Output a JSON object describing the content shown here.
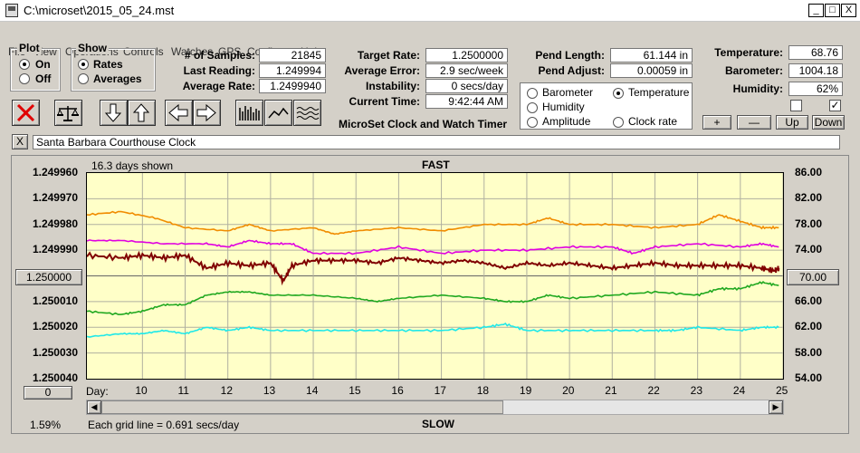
{
  "window": {
    "title": "C:\\microset\\2015_05_24.mst",
    "min": "_",
    "max": "□",
    "close": "X"
  },
  "menu": [
    "File",
    "View",
    "Operations",
    "Controls",
    "Watches",
    "GPS",
    "Configure",
    "Help"
  ],
  "plot_group": {
    "title": "Plot",
    "on": "On",
    "off": "Off",
    "selected": "On"
  },
  "show_group": {
    "title": "Show",
    "rates": "Rates",
    "averages": "Averages",
    "selected": "Rates"
  },
  "stats": {
    "samples_label": "# of Samples:",
    "samples": "21845",
    "last_label": "Last Reading:",
    "last": "1.249994",
    "avg_label": "Average Rate:",
    "avg": "1.2499940",
    "target_label": "Target Rate:",
    "target": "1.2500000",
    "avgerr_label": "Average Error:",
    "avgerr": "2.9 sec/week",
    "instab_label": "Instability:",
    "instab": "0 secs/day",
    "time_label": "Current Time:",
    "time": "9:42:44 AM",
    "app_name": "MicroSet Clock and Watch Timer",
    "pendlen_label": "Pend Length:",
    "pendlen": "61.144 in",
    "pendadj_label": "Pend Adjust:",
    "pendadj": "0.00059 in",
    "temp_label": "Temperature:",
    "temp": "68.76",
    "baro_label": "Barometer:",
    "baro": "1004.18",
    "hum_label": "Humidity:",
    "hum": "62%"
  },
  "sensor_group": {
    "barometer": "Barometer",
    "temperature": "Temperature",
    "humidity": "Humidity",
    "amplitude": "Amplitude",
    "clock_rate": "Clock rate",
    "selected": "Temperature"
  },
  "adj_buttons": {
    "plus": "+",
    "minus": "—",
    "up": "Up",
    "down": "Down"
  },
  "clock_name": {
    "close": "X",
    "value": "Santa Barbara Courthouse Clock"
  },
  "chart": {
    "days_shown": "16.3 days shown",
    "fast": "FAST",
    "slow": "SLOW",
    "center_left": "1.250000",
    "center_right": "70.00",
    "zero_button": "0",
    "day_label": "Day:",
    "percent": "1.59%",
    "grid_note": "Each grid line = 0.691 secs/day"
  },
  "colors": {
    "barometer": "#f08c00",
    "temperature": "#20a820",
    "humidity": "#e000e0",
    "amplitude": "#20e8e8",
    "rate": "#800000",
    "plot_bg": "#ffffc8"
  },
  "chart_data": {
    "type": "line",
    "title": "",
    "xlabel": "Day:",
    "x_ticks": [
      10,
      11,
      12,
      13,
      14,
      15,
      16,
      17,
      18,
      19,
      20,
      21,
      22,
      23,
      24,
      25
    ],
    "left_axis_ticks": [
      "1.249960",
      "1.249970",
      "1.249980",
      "1.249990",
      "1.250000",
      "1.250010",
      "1.250020",
      "1.250030",
      "1.250040"
    ],
    "right_axis_ticks": [
      "86.00",
      "82.00",
      "78.00",
      "74.00",
      "70.00",
      "66.00",
      "62.00",
      "58.00",
      "54.00"
    ],
    "ylim_left": [
      1.24996,
      1.25004
    ],
    "ylim_right": [
      54,
      86
    ],
    "xlim": [
      8.7,
      25
    ],
    "grid": true,
    "series": [
      {
        "name": "Barometer",
        "color": "#f08c00",
        "axis": "right",
        "x": [
          8.7,
          9.5,
          10.3,
          11,
          12,
          12.5,
          13,
          14,
          14.5,
          15,
          16,
          17,
          18,
          19,
          19.5,
          20,
          21,
          22,
          23,
          23.5,
          24,
          24.5,
          24.9
        ],
        "y": [
          79.5,
          80,
          79,
          77.5,
          77,
          78,
          77,
          77.5,
          76.5,
          77,
          77.5,
          77,
          78,
          78,
          79,
          78,
          78,
          77.5,
          78,
          79.5,
          78.5,
          77.5,
          77.5
        ]
      },
      {
        "name": "Humidity",
        "color": "#e000e0",
        "axis": "right",
        "x": [
          8.7,
          9.5,
          10.5,
          11.5,
          12,
          12.5,
          13,
          13.5,
          14,
          15,
          16,
          17,
          18,
          19,
          20,
          21,
          21.5,
          22,
          23,
          24,
          24.5,
          24.9
        ],
        "y": [
          75.5,
          75.5,
          75,
          75,
          74.5,
          75.5,
          75,
          75,
          73.5,
          73.5,
          74.5,
          73.5,
          74,
          74,
          74.5,
          74.5,
          73.5,
          74.5,
          75,
          74.5,
          75,
          74.5
        ]
      },
      {
        "name": "Clock rate",
        "color": "#800000",
        "axis": "left",
        "x": [
          8.7,
          9.5,
          10,
          10.5,
          11,
          11.5,
          12,
          12.5,
          13,
          13.3,
          13.5,
          14,
          14.5,
          15,
          15.5,
          16,
          16.5,
          17,
          17.5,
          18,
          18.5,
          19,
          19.5,
          20,
          20.5,
          21,
          21.5,
          22,
          22.5,
          23,
          23.5,
          24,
          24.5,
          24.8,
          24.9
        ],
        "y": [
          1.249992,
          1.249993,
          1.249992,
          1.249993,
          1.249992,
          1.249997,
          1.249995,
          1.249996,
          1.249995,
          1.250002,
          1.249996,
          1.249994,
          1.249994,
          1.249994,
          1.249995,
          1.249993,
          1.249994,
          1.249995,
          1.249994,
          1.249995,
          1.249997,
          1.249995,
          1.249996,
          1.249995,
          1.249996,
          1.249997,
          1.249996,
          1.249995,
          1.249996,
          1.249996,
          1.249996,
          1.249996,
          1.249997,
          1.249998,
          1.249997
        ]
      },
      {
        "name": "Temperature",
        "color": "#20a820",
        "axis": "right",
        "x": [
          8.7,
          9.5,
          10,
          10.5,
          11,
          11.5,
          12,
          12.5,
          13,
          14,
          15,
          15.5,
          16,
          17,
          18,
          18.5,
          19,
          19.5,
          20,
          21,
          22,
          23,
          23.5,
          24,
          24.5,
          24.9
        ],
        "y": [
          64.5,
          64,
          64.5,
          65.5,
          65.5,
          67,
          67.5,
          67.5,
          67,
          67,
          66.5,
          66,
          66.5,
          67,
          66.5,
          66,
          66,
          67,
          66.5,
          67,
          67.5,
          67,
          68,
          68,
          69,
          68.5
        ]
      },
      {
        "name": "Amplitude",
        "color": "#20e8e8",
        "axis": "right",
        "x": [
          8.7,
          9.5,
          10,
          10.5,
          11,
          11.5,
          12,
          12.5,
          13,
          14,
          15,
          16,
          17,
          18,
          18.5,
          19,
          20,
          21,
          22,
          22.5,
          23,
          24,
          24.5,
          24.9
        ],
        "y": [
          60.5,
          61,
          61,
          61.5,
          61,
          62,
          61.5,
          62,
          61.5,
          61.5,
          61.5,
          61.5,
          61.5,
          62,
          62.5,
          61.5,
          61.5,
          61.5,
          61.5,
          61.5,
          62,
          61.5,
          62,
          62
        ]
      }
    ]
  }
}
